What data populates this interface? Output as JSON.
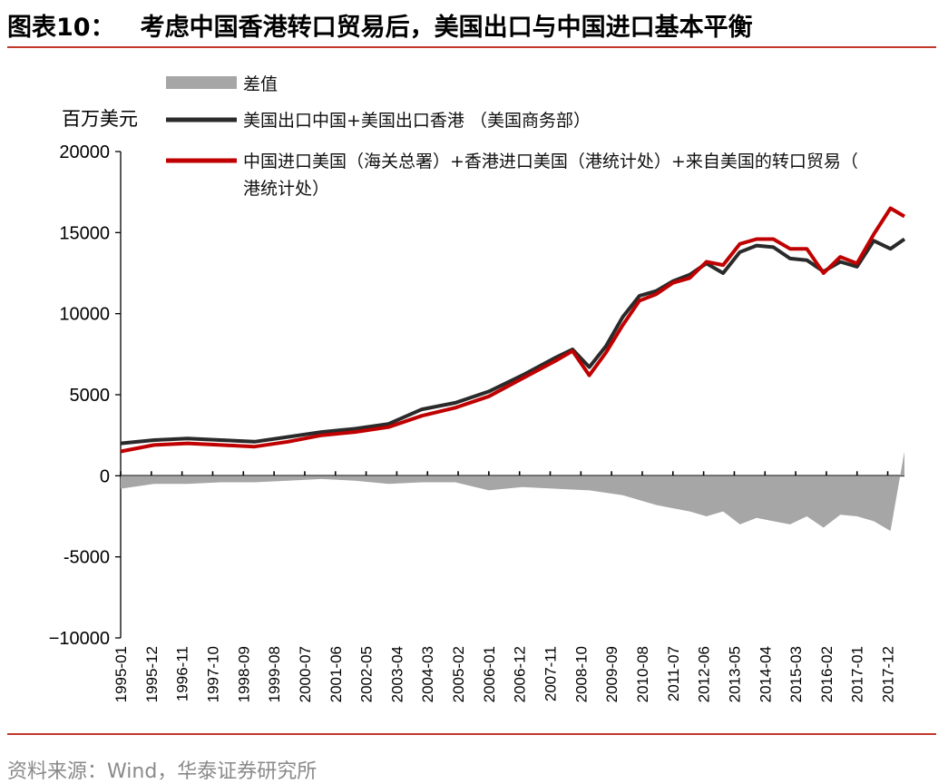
{
  "header": {
    "figure_label": "图表10：",
    "title": "考虑中国香港转口贸易后，美国出口与中国进口基本平衡"
  },
  "footer": {
    "source": "资料来源：Wind，华泰证券研究所"
  },
  "colors": {
    "rule": "#c0392b",
    "diff": "#a6a6a6",
    "us_exports": "#2a2a2a",
    "china_imports": "#c00000"
  },
  "chart_data": {
    "type": "line",
    "ylabel": "百万美元",
    "ylim": [
      -10000,
      20000
    ],
    "yticks": [
      -10000,
      -5000,
      0,
      5000,
      10000,
      15000,
      20000
    ],
    "ytick_labels": [
      "−10000",
      "-5000",
      "0",
      "5000",
      "10000",
      "15000",
      "20000"
    ],
    "x_range": [
      "1995-01",
      "2018-06"
    ],
    "x_tick_labels": [
      "1995-01",
      "1995-12",
      "1996-11",
      "1997-10",
      "1998-09",
      "1999-08",
      "2000-07",
      "2001-06",
      "2002-05",
      "2003-04",
      "2004-03",
      "2005-02",
      "2006-01",
      "2006-12",
      "2007-11",
      "2008-10",
      "2009-09",
      "2010-08",
      "2011-07",
      "2012-06",
      "2013-05",
      "2014-04",
      "2015-03",
      "2016-02",
      "2017-01",
      "2017-12"
    ],
    "legend_position": "top",
    "series": [
      {
        "name": "差值",
        "kind": "area",
        "color": "#a6a6a6",
        "x": [
          "1995-01",
          "1996-01",
          "1997-01",
          "1998-01",
          "1999-01",
          "2000-01",
          "2001-01",
          "2002-01",
          "2003-01",
          "2004-01",
          "2005-01",
          "2006-01",
          "2007-01",
          "2008-01",
          "2009-01",
          "2010-01",
          "2010-07",
          "2011-01",
          "2011-07",
          "2012-01",
          "2012-07",
          "2013-01",
          "2013-07",
          "2014-01",
          "2014-07",
          "2015-01",
          "2015-07",
          "2016-01",
          "2016-07",
          "2017-01",
          "2017-07",
          "2018-01",
          "2018-06"
        ],
        "values": [
          -800,
          -500,
          -500,
          -400,
          -400,
          -300,
          -200,
          -300,
          -500,
          -400,
          -400,
          -900,
          -700,
          -800,
          -900,
          -1200,
          -1500,
          -1800,
          -2000,
          -2200,
          -2500,
          -2200,
          -3000,
          -2600,
          -2800,
          -3000,
          -2500,
          -3200,
          -2400,
          -2500,
          -2800,
          -3400,
          1500
        ]
      },
      {
        "name": "美国出口中国+美国出口香港 （美国商务部）",
        "kind": "line",
        "color": "#2a2a2a",
        "x": [
          "1995-01",
          "1996-01",
          "1997-01",
          "1998-01",
          "1999-01",
          "2000-01",
          "2001-01",
          "2002-01",
          "2003-01",
          "2004-01",
          "2005-01",
          "2006-01",
          "2007-01",
          "2008-01",
          "2008-07",
          "2009-01",
          "2009-07",
          "2010-01",
          "2010-07",
          "2011-01",
          "2011-07",
          "2012-01",
          "2012-07",
          "2013-01",
          "2013-07",
          "2014-01",
          "2014-07",
          "2015-01",
          "2015-07",
          "2016-01",
          "2016-07",
          "2017-01",
          "2017-07",
          "2018-01",
          "2018-06"
        ],
        "values": [
          2000,
          2200,
          2300,
          2200,
          2100,
          2400,
          2700,
          2900,
          3200,
          4100,
          4500,
          5200,
          6200,
          7300,
          7800,
          6700,
          8000,
          9800,
          11100,
          11400,
          12000,
          12400,
          13100,
          12500,
          13800,
          14200,
          14100,
          13400,
          13300,
          12600,
          13200,
          12900,
          14500,
          14000,
          14600
        ]
      },
      {
        "name": "中国进口美国（海关总署）+香港进口美国（港统计处）+来自美国的转口贸易（港统计处）",
        "kind": "line",
        "color": "#c00000",
        "x": [
          "1995-01",
          "1996-01",
          "1997-01",
          "1998-01",
          "1999-01",
          "2000-01",
          "2001-01",
          "2002-01",
          "2003-01",
          "2004-01",
          "2005-01",
          "2006-01",
          "2007-01",
          "2008-01",
          "2008-07",
          "2009-01",
          "2009-07",
          "2010-01",
          "2010-07",
          "2011-01",
          "2011-07",
          "2012-01",
          "2012-07",
          "2013-01",
          "2013-07",
          "2014-01",
          "2014-07",
          "2015-01",
          "2015-07",
          "2016-01",
          "2016-07",
          "2017-01",
          "2017-07",
          "2018-01",
          "2018-06"
        ],
        "values": [
          1500,
          1900,
          2000,
          1900,
          1800,
          2100,
          2500,
          2700,
          3000,
          3700,
          4200,
          4900,
          6000,
          7100,
          7700,
          6200,
          7600,
          9300,
          10800,
          11200,
          11900,
          12200,
          13200,
          13000,
          14300,
          14600,
          14600,
          14000,
          14000,
          12500,
          13500,
          13100,
          14900,
          16500,
          16000
        ]
      }
    ]
  }
}
